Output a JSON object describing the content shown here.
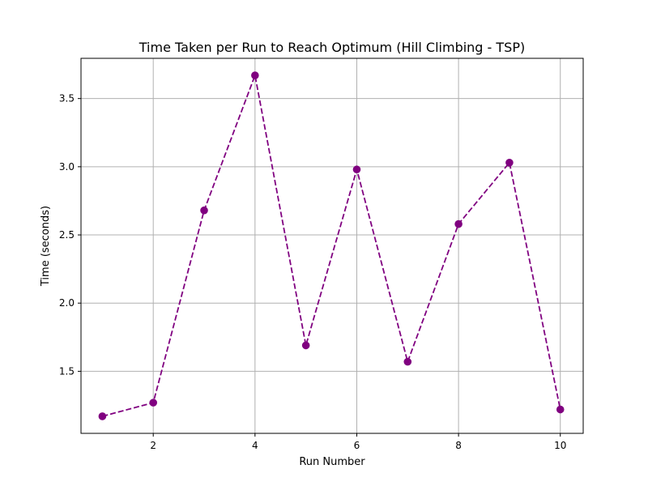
{
  "chart_data": {
    "type": "line",
    "title": "Time Taken per Run to Reach Optimum (Hill Climbing - TSP)",
    "xlabel": "Run Number",
    "ylabel": "Time (seconds)",
    "x": [
      1,
      2,
      3,
      4,
      5,
      6,
      7,
      8,
      9,
      10
    ],
    "series": [
      {
        "values": [
          1.17,
          1.27,
          2.68,
          3.67,
          1.69,
          2.98,
          1.57,
          2.58,
          3.03,
          1.22
        ],
        "color": "#800080",
        "line_style": "dashed",
        "marker": "circle"
      }
    ],
    "xlim": [
      0.58,
      10.45
    ],
    "ylim": [
      1.045,
      3.795
    ],
    "xticks": [
      2,
      4,
      6,
      8,
      10
    ],
    "xtick_labels": [
      "2",
      "4",
      "6",
      "8",
      "10"
    ],
    "yticks": [
      1.5,
      2.0,
      2.5,
      3.0,
      3.5
    ],
    "ytick_labels": [
      "1.5",
      "2.0",
      "2.5",
      "3.0",
      "3.5"
    ],
    "grid": true,
    "legend": false
  }
}
